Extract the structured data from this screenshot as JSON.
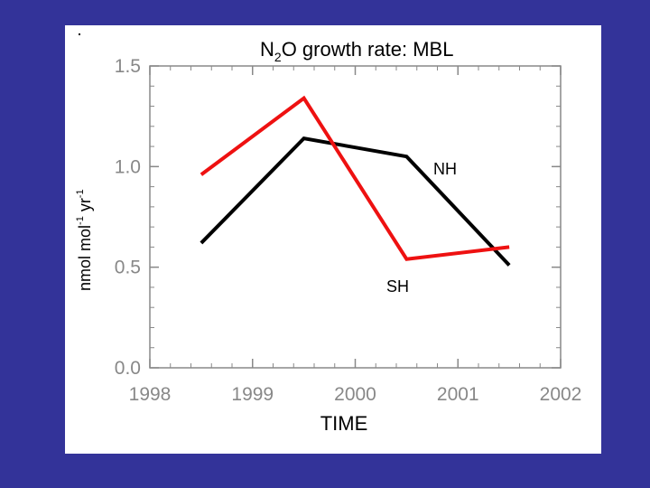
{
  "chart_data": {
    "type": "line",
    "title_main": "N",
    "title_sub": "2",
    "title_rest": "O growth rate: MBL",
    "xlabel": "TIME",
    "ylabel_parts": [
      "nmol mol",
      "-1",
      " yr",
      "-1"
    ],
    "xlim": [
      1998,
      2002
    ],
    "ylim": [
      0.0,
      1.5
    ],
    "x_ticks": [
      "1998",
      "1999",
      "2000",
      "2001",
      "2002"
    ],
    "y_ticks": [
      "0.0",
      "0.5",
      "1.0",
      "1.5"
    ],
    "grid": false,
    "series": [
      {
        "name": "NH",
        "color": "#000000",
        "x": [
          1998.5,
          1999.5,
          2000.5,
          2001.5
        ],
        "y": [
          0.62,
          1.14,
          1.05,
          0.51
        ]
      },
      {
        "name": "SH",
        "color": "#ee1111",
        "x": [
          1998.5,
          1999.5,
          2000.5,
          2001.5
        ],
        "y": [
          0.96,
          1.34,
          0.54,
          0.6
        ]
      }
    ]
  }
}
